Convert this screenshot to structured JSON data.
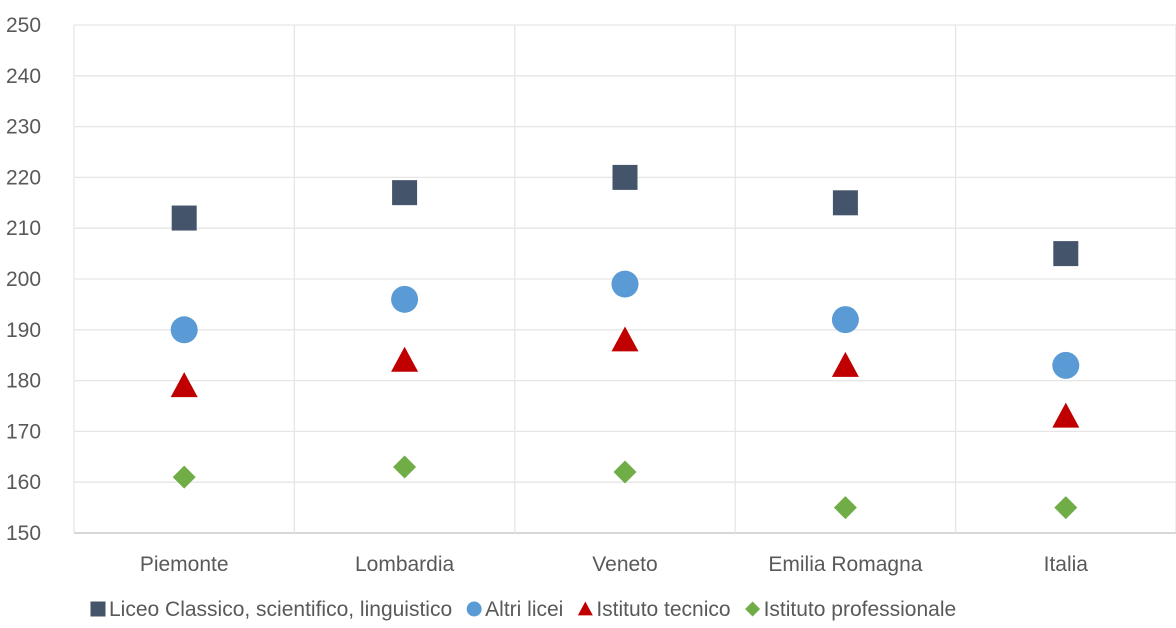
{
  "chart_data": {
    "type": "scatter",
    "categories": [
      "Piemonte",
      "Lombardia",
      "Veneto",
      "Emilia Romagna",
      "Italia"
    ],
    "ylim": [
      150,
      250
    ],
    "yticks": [
      150,
      160,
      170,
      180,
      190,
      200,
      210,
      220,
      230,
      240,
      250
    ],
    "grid": true,
    "legend_position": "bottom",
    "series": [
      {
        "name": "Liceo Classico, scientifico, linguistico",
        "marker": "square",
        "color": "#44546a",
        "values": [
          212,
          217,
          220,
          215,
          205
        ]
      },
      {
        "name": "Altri licei",
        "marker": "circle",
        "color": "#5b9bd5",
        "values": [
          190,
          196,
          199,
          192,
          183
        ]
      },
      {
        "name": "Istituto tecnico",
        "marker": "triangle",
        "color": "#c00000",
        "values": [
          179,
          184,
          188,
          183,
          173
        ]
      },
      {
        "name": "Istituto professionale",
        "marker": "diamond",
        "color": "#70ad47",
        "values": [
          161,
          163,
          162,
          155,
          155
        ]
      }
    ]
  }
}
